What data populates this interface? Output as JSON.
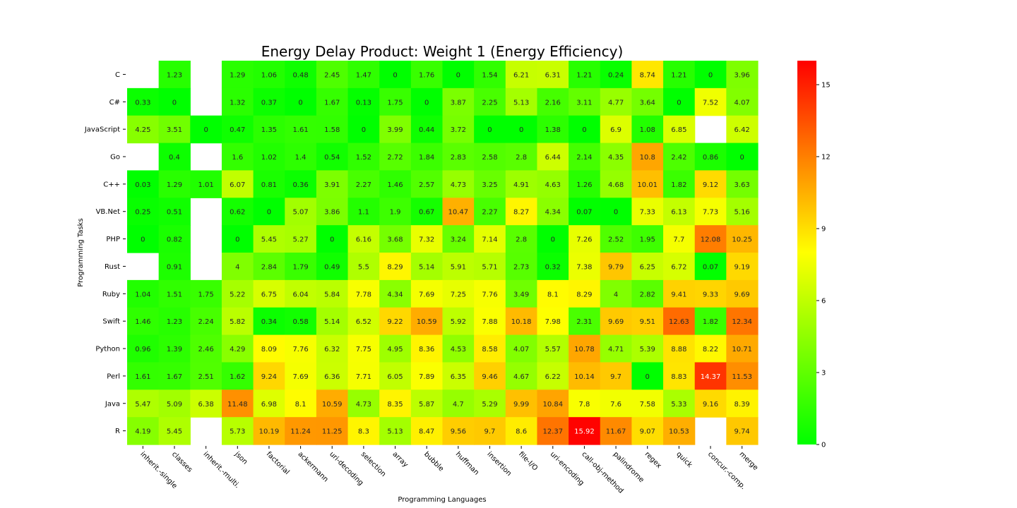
{
  "chart_data": {
    "type": "heatmap",
    "title": "Energy Delay Product: Weight 1 (Energy Efficiency)",
    "xlabel": "Programming Languages",
    "ylabel": "Programming Tasks",
    "x_categories": [
      "inherit.-single",
      "classes",
      "inherit.-multi.",
      "json",
      "factorial",
      "ackermann",
      "uri-decoding",
      "selection",
      "array",
      "bubble",
      "huffman",
      "insertion",
      "file-I/O",
      "uri-encoding",
      "call-obj-method",
      "palindrome",
      "regex",
      "quick",
      "concur.-comp.",
      "merge"
    ],
    "y_categories": [
      "C",
      "C#",
      "JavaScript",
      "Go",
      "C++",
      "VB.Net",
      "PHP",
      "Rust",
      "Ruby",
      "Swift",
      "Python",
      "Perl",
      "Java",
      "R"
    ],
    "values": [
      [
        null,
        1.23,
        null,
        1.29,
        1.06,
        0.48,
        2.45,
        1.47,
        0,
        1.76,
        0,
        1.54,
        6.21,
        6.31,
        1.21,
        0.24,
        8.74,
        1.21,
        0,
        3.96
      ],
      [
        0.33,
        0,
        null,
        1.32,
        0.37,
        0,
        1.67,
        0.13,
        1.75,
        0,
        3.87,
        2.25,
        5.13,
        2.16,
        3.11,
        4.77,
        3.64,
        0,
        7.52,
        4.07
      ],
      [
        4.25,
        3.51,
        0,
        0.47,
        1.35,
        1.61,
        1.58,
        0,
        3.99,
        0.44,
        3.72,
        0,
        0,
        1.38,
        0,
        6.9,
        1.08,
        6.85,
        null,
        6.42
      ],
      [
        null,
        0.4,
        null,
        1.6,
        1.02,
        1.4,
        0.54,
        1.52,
        2.72,
        1.84,
        2.83,
        2.58,
        2.8,
        6.44,
        2.14,
        4.35,
        10.8,
        2.42,
        0.86,
        0
      ],
      [
        0.03,
        1.29,
        1.01,
        6.07,
        0.81,
        0.36,
        3.91,
        2.27,
        1.46,
        2.57,
        4.73,
        3.25,
        4.91,
        4.63,
        1.26,
        4.68,
        10.01,
        1.82,
        9.12,
        3.63
      ],
      [
        0.25,
        0.51,
        null,
        0.62,
        0,
        5.07,
        3.86,
        1.1,
        1.9,
        0.67,
        10.47,
        2.27,
        8.27,
        4.34,
        0.07,
        0,
        7.33,
        6.13,
        7.73,
        5.16
      ],
      [
        0,
        0.82,
        null,
        0,
        5.45,
        5.27,
        0,
        6.16,
        3.68,
        7.32,
        3.24,
        7.14,
        2.8,
        0,
        7.26,
        2.52,
        1.95,
        7.7,
        12.08,
        10.25
      ],
      [
        null,
        0.91,
        null,
        4,
        2.84,
        1.79,
        0.49,
        5.5,
        8.29,
        5.14,
        5.91,
        5.71,
        2.73,
        0.32,
        7.38,
        9.79,
        6.25,
        6.72,
        0.07,
        9.19
      ],
      [
        1.04,
        1.51,
        1.75,
        5.22,
        6.75,
        6.04,
        5.84,
        7.78,
        4.34,
        7.69,
        7.25,
        7.76,
        3.49,
        8.1,
        8.29,
        4,
        2.82,
        9.41,
        9.33,
        9.69
      ],
      [
        1.46,
        1.23,
        2.24,
        5.82,
        0.34,
        0.58,
        5.14,
        6.52,
        9.22,
        10.59,
        5.92,
        7.88,
        10.18,
        7.98,
        2.31,
        9.69,
        9.51,
        12.63,
        1.82,
        12.34
      ],
      [
        0.96,
        1.39,
        2.46,
        4.29,
        8.09,
        7.76,
        6.32,
        7.75,
        4.95,
        8.36,
        4.53,
        8.58,
        4.07,
        5.57,
        10.78,
        4.71,
        5.39,
        8.88,
        8.22,
        10.71
      ],
      [
        1.61,
        1.67,
        2.51,
        1.62,
        9.24,
        7.69,
        6.36,
        7.71,
        6.05,
        7.89,
        6.35,
        9.46,
        4.67,
        6.22,
        10.14,
        9.7,
        0,
        8.83,
        14.37,
        11.53
      ],
      [
        5.47,
        5.09,
        6.38,
        11.48,
        6.98,
        8.1,
        10.59,
        4.73,
        8.35,
        5.87,
        4.7,
        5.29,
        9.99,
        10.84,
        7.8,
        7.6,
        7.58,
        5.33,
        9.16,
        8.39
      ],
      [
        4.19,
        5.45,
        null,
        5.73,
        10.19,
        11.24,
        11.25,
        8.3,
        5.13,
        8.47,
        9.56,
        9.7,
        8.6,
        12.37,
        15.92,
        11.67,
        9.07,
        10.53,
        null,
        9.74
      ]
    ],
    "colormap": [
      "#00ff00",
      "#ffff00",
      "#ff0000"
    ],
    "vmin": 0,
    "vmax": 16,
    "colorbar_ticks": [
      0,
      3,
      6,
      9,
      12,
      15
    ]
  }
}
